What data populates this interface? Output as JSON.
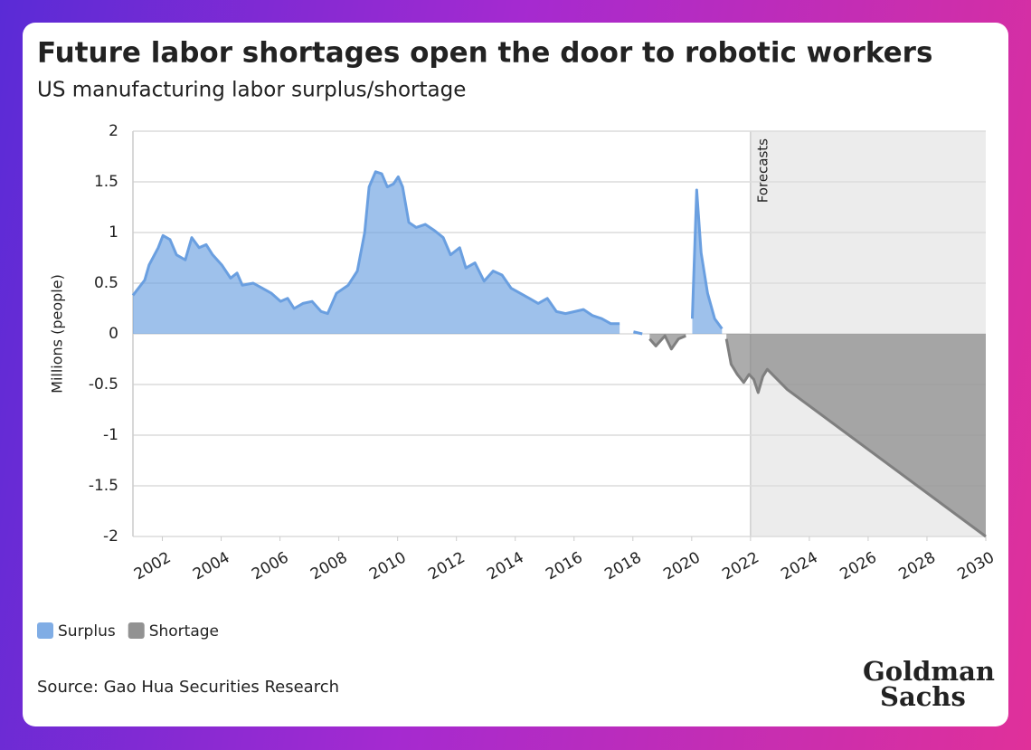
{
  "chart_data": {
    "type": "area",
    "title": "Future labor shortages open the door to robotic workers",
    "subtitle": "US manufacturing labor surplus/shortage",
    "ylabel": "Millions (people)",
    "annotation": "Forecasts",
    "forecast_start": 2022,
    "source": "Source: Gao Hua Securities Research",
    "logo": [
      "Goldman",
      "Sachs"
    ],
    "xlim": [
      2001,
      2030
    ],
    "xticks": [
      2002,
      2004,
      2006,
      2008,
      2010,
      2012,
      2014,
      2016,
      2018,
      2020,
      2022,
      2024,
      2026,
      2028,
      2030
    ],
    "ylim": [
      -2,
      2
    ],
    "yticks": [
      -2,
      -1.5,
      -1,
      -0.5,
      0,
      0.5,
      1,
      1.5,
      2
    ],
    "grid": true,
    "x": [
      2001.0,
      2001.4,
      2001.55,
      2001.86,
      2002.02,
      2002.26,
      2002.48,
      2002.78,
      2003.0,
      2003.25,
      2003.49,
      2003.71,
      2004.02,
      2004.32,
      2004.54,
      2004.72,
      2005.09,
      2005.4,
      2005.71,
      2006.02,
      2006.26,
      2006.48,
      2006.78,
      2007.09,
      2007.4,
      2007.62,
      2007.92,
      2008.32,
      2008.63,
      2008.88,
      2009.03,
      2009.25,
      2009.46,
      2009.65,
      2009.86,
      2010.02,
      2010.17,
      2010.38,
      2010.63,
      2010.94,
      2011.25,
      2011.55,
      2011.8,
      2012.11,
      2012.32,
      2012.63,
      2012.94,
      2013.25,
      2013.55,
      2013.86,
      2014.17,
      2014.48,
      2014.78,
      2015.09,
      2015.4,
      2015.71,
      2016.02,
      2016.32,
      2016.63,
      2016.94,
      2017.25,
      2017.55,
      2017.77,
      2018.02,
      2018.32,
      2018.57,
      2018.78,
      2019.09,
      2019.31,
      2019.55,
      2019.8,
      2020.02,
      2020.17,
      2020.32,
      2020.54,
      2020.78,
      2021.03,
      2021.18,
      2021.34,
      2021.55,
      2021.77,
      2021.95,
      2022.11,
      2022.26,
      2022.42,
      2022.57,
      2023.25,
      2030.0
    ],
    "series": [
      {
        "name": "Surplus",
        "color": "#6a9fe0",
        "values": [
          0.38,
          0.53,
          0.68,
          0.85,
          0.97,
          0.93,
          0.78,
          0.73,
          0.95,
          0.85,
          0.88,
          0.78,
          0.68,
          0.55,
          0.6,
          0.48,
          0.5,
          0.45,
          0.4,
          0.32,
          0.35,
          0.25,
          0.3,
          0.32,
          0.22,
          0.2,
          0.4,
          0.48,
          0.62,
          1.0,
          1.45,
          1.6,
          1.58,
          1.45,
          1.48,
          1.55,
          1.45,
          1.1,
          1.05,
          1.08,
          1.02,
          0.95,
          0.78,
          0.85,
          0.65,
          0.7,
          0.52,
          0.62,
          0.58,
          0.45,
          0.4,
          0.35,
          0.3,
          0.35,
          0.22,
          0.2,
          0.22,
          0.24,
          0.18,
          0.15,
          0.1,
          0.1,
          null,
          0.02,
          0.0,
          null,
          null,
          null,
          null,
          null,
          null,
          0.15,
          1.42,
          0.8,
          0.4,
          0.15,
          0.05,
          null,
          null,
          null,
          null,
          null,
          null,
          null,
          null,
          null,
          null,
          null
        ]
      },
      {
        "name": "Shortage",
        "color": "#7f7f7f",
        "values": [
          null,
          null,
          null,
          null,
          null,
          null,
          null,
          null,
          null,
          null,
          null,
          null,
          null,
          null,
          null,
          null,
          null,
          null,
          null,
          null,
          null,
          null,
          null,
          null,
          null,
          null,
          null,
          null,
          null,
          null,
          null,
          null,
          null,
          null,
          null,
          null,
          null,
          null,
          null,
          null,
          null,
          null,
          null,
          null,
          null,
          null,
          null,
          null,
          null,
          null,
          null,
          null,
          null,
          null,
          null,
          null,
          null,
          null,
          null,
          null,
          null,
          null,
          -0.05,
          null,
          null,
          -0.05,
          -0.12,
          -0.02,
          -0.15,
          -0.05,
          -0.02,
          null,
          null,
          null,
          null,
          null,
          null,
          -0.05,
          -0.3,
          -0.4,
          -0.48,
          -0.4,
          -0.45,
          -0.58,
          -0.42,
          -0.35,
          -0.55,
          -2.0
        ]
      }
    ]
  }
}
